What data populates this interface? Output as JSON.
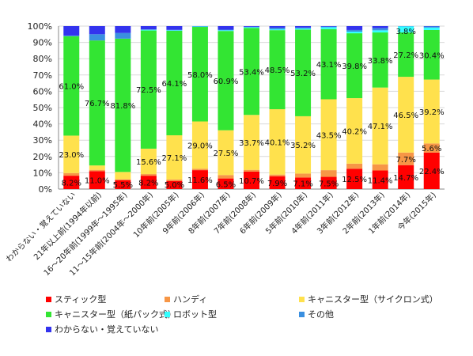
{
  "chart_data": {
    "type": "bar",
    "stacked": true,
    "percent": true,
    "ylim": [
      0,
      100
    ],
    "y_ticks": [
      "0%",
      "10%",
      "20%",
      "30%",
      "40%",
      "50%",
      "60%",
      "70%",
      "80%",
      "90%",
      "100%"
    ],
    "categories": [
      "わからない・覚えていない",
      "21年以上前(1994年以前)",
      "16～20年前(1999年～1995年)",
      "11～15年前(2004年～2000年)",
      "10年前(2005年)",
      "9年前(2006年)",
      "8年前(2007年)",
      "7年前(2008年)",
      "6年前(2009年)",
      "5年前(2010年)",
      "4年前(2011年)",
      "3年前(2012年)",
      "2年前(2013年)",
      "1年前(2014年)",
      "今年(2015年)"
    ],
    "series": [
      {
        "name": "スティック型",
        "color": "#ff0000",
        "values": [
          8.2,
          11.0,
          5.5,
          8.2,
          5.0,
          11.6,
          6.5,
          10.7,
          7.9,
          7.1,
          7.5,
          12.5,
          11.4,
          14.7,
          22.4
        ],
        "labels": [
          "8.2%",
          "11.0%",
          "5.5%",
          "8.2%",
          "5.0%",
          "11.6%",
          "6.5%",
          "10.7%",
          "7.9%",
          "7.1%",
          "7.5%",
          "12.5%",
          "11.4%",
          "14.7%",
          "22.4%"
        ]
      },
      {
        "name": "ハンディ",
        "color": "#f79646",
        "values": [
          1.6,
          0.8,
          0.5,
          1.0,
          0.9,
          0.9,
          2.1,
          1.1,
          1.0,
          2.4,
          4.1,
          3.1,
          3.8,
          7.7,
          5.6
        ],
        "labels": [
          "",
          "",
          "",
          "",
          "",
          "",
          "",
          "",
          "",
          "",
          "",
          "",
          "",
          "7.7%",
          "5.6%"
        ]
      },
      {
        "name": "キャニスター型（サイクロン式）",
        "color": "#ffe14d",
        "values": [
          23.0,
          2.7,
          4.5,
          15.6,
          27.1,
          29.0,
          27.5,
          33.7,
          40.1,
          35.2,
          43.5,
          40.2,
          47.1,
          46.5,
          39.2
        ],
        "labels": [
          "23.0%",
          "",
          "",
          "15.6%",
          "27.1%",
          "29.0%",
          "27.5%",
          "33.7%",
          "40.1%",
          "35.2%",
          "43.5%",
          "40.2%",
          "47.1%",
          "46.5%",
          "39.2%"
        ]
      },
      {
        "name": "キャニスター型（紙パック式）",
        "color": "#33e533",
        "values": [
          61.0,
          76.7,
          81.8,
          72.5,
          64.1,
          58.0,
          60.9,
          53.4,
          48.5,
          53.2,
          43.1,
          39.8,
          33.8,
          27.2,
          30.4
        ],
        "labels": [
          "61.0%",
          "76.7%",
          "81.8%",
          "72.5%",
          "64.1%",
          "58.0%",
          "60.9%",
          "53.4%",
          "48.5%",
          "53.2%",
          "43.1%",
          "39.8%",
          "33.8%",
          "27.2%",
          "30.4%"
        ]
      },
      {
        "name": "ロボット型",
        "color": "#33ffff",
        "values": [
          0.0,
          0.0,
          0.0,
          0.4,
          0.3,
          0.2,
          0.4,
          0.4,
          0.5,
          0.6,
          1.1,
          1.0,
          1.3,
          3.8,
          1.5
        ],
        "labels": [
          "",
          "",
          "",
          "",
          "",
          "",
          "",
          "",
          "",
          "",
          "",
          "",
          "",
          "3.8%",
          ""
        ]
      },
      {
        "name": "その他",
        "color": "#3a8fe0",
        "values": [
          0.4,
          3.8,
          3.5,
          0.3,
          0.3,
          0.3,
          0.4,
          0.3,
          1.0,
          0.6,
          0.4,
          1.0,
          1.3,
          0.0,
          0.7
        ],
        "labels": [
          "",
          "",
          "",
          "",
          "",
          "",
          "",
          "",
          "",
          "",
          "",
          "",
          "",
          "",
          ""
        ]
      },
      {
        "name": "わからない・覚えていない",
        "color": "#3333ee",
        "values": [
          5.8,
          5.0,
          4.2,
          2.0,
          2.3,
          0.0,
          2.2,
          0.4,
          1.0,
          0.9,
          0.3,
          2.4,
          1.3,
          0.1,
          0.2
        ],
        "labels": [
          "",
          "",
          "",
          "",
          "",
          "",
          "",
          "",
          "",
          "",
          "",
          "",
          "",
          "",
          ""
        ]
      }
    ]
  }
}
